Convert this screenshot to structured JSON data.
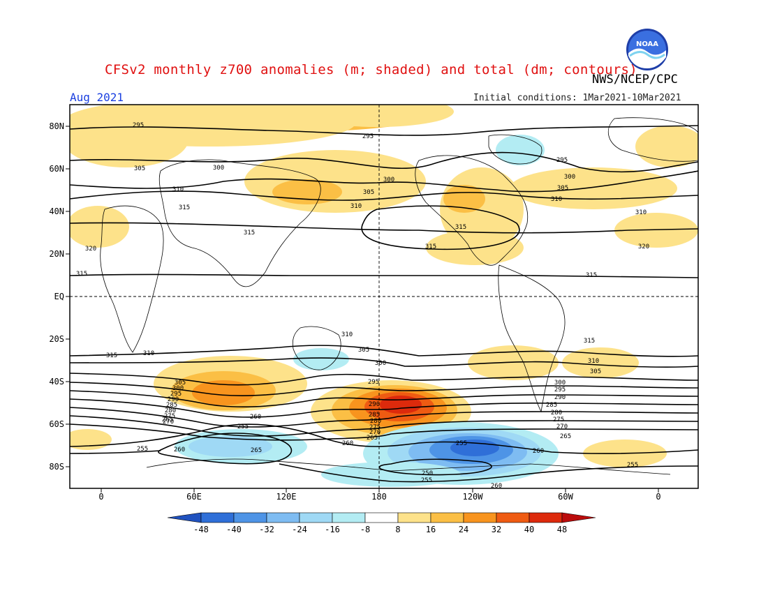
{
  "header": {
    "title": "CFSv2 monthly z700 anomalies (m; shaded) and total (dm; contours)",
    "agency": "NWS/NCEP/CPC",
    "month": "Aug 2021",
    "initial_conditions": "Initial conditions: 1Mar2021-10Mar2021",
    "logo_text": "NOAA"
  },
  "map": {
    "lat_labels": [
      "80N",
      "60N",
      "40N",
      "20N",
      "EQ",
      "20S",
      "40S",
      "60S",
      "80S"
    ],
    "lon_labels": [
      "0",
      "60E",
      "120E",
      "180",
      "120W",
      "60W",
      "0"
    ],
    "colors": {
      "pos8": "#fde28a",
      "pos16": "#fbbf45",
      "pos24": "#f8941e",
      "pos32": "#ef5b12",
      "pos40": "#dd2a0c",
      "pos48": "#bb0c0c",
      "neg8": "#b3ecf3",
      "neg16": "#9fd9f5",
      "neg24": "#7ebcf2",
      "neg32": "#4e94e6",
      "neg40": "#2f6fd8",
      "neg48": "#2052bf"
    },
    "contour_labels": [
      {
        "text": "295"
      },
      {
        "text": "295"
      },
      {
        "text": "295"
      },
      {
        "text": "305"
      },
      {
        "text": "300"
      },
      {
        "text": "300"
      },
      {
        "text": "300"
      },
      {
        "text": "310"
      },
      {
        "text": "305"
      },
      {
        "text": "305"
      },
      {
        "text": "310"
      },
      {
        "text": "310"
      },
      {
        "text": "315"
      },
      {
        "text": "310"
      },
      {
        "text": "315"
      },
      {
        "text": "315"
      },
      {
        "text": "315"
      },
      {
        "text": "320"
      },
      {
        "text": "320"
      },
      {
        "text": "315"
      },
      {
        "text": "315"
      },
      {
        "text": "310"
      },
      {
        "text": "315"
      },
      {
        "text": "310"
      },
      {
        "text": "305"
      },
      {
        "text": "315"
      },
      {
        "text": "310"
      },
      {
        "text": "305"
      },
      {
        "text": "300"
      },
      {
        "text": "295"
      },
      {
        "text": "305"
      },
      {
        "text": "300"
      },
      {
        "text": "295"
      },
      {
        "text": "290"
      },
      {
        "text": "285"
      },
      {
        "text": "280"
      },
      {
        "text": "275"
      },
      {
        "text": "270"
      },
      {
        "text": "265"
      },
      {
        "text": "290"
      },
      {
        "text": "285"
      },
      {
        "text": "280"
      },
      {
        "text": "275"
      },
      {
        "text": "270"
      },
      {
        "text": "265"
      },
      {
        "text": "300"
      },
      {
        "text": "295"
      },
      {
        "text": "290"
      },
      {
        "text": "285"
      },
      {
        "text": "280"
      },
      {
        "text": "275"
      },
      {
        "text": "270"
      },
      {
        "text": "265"
      },
      {
        "text": "260"
      },
      {
        "text": "260"
      },
      {
        "text": "255"
      },
      {
        "text": "255"
      },
      {
        "text": "260"
      },
      {
        "text": "265"
      },
      {
        "text": "260"
      },
      {
        "text": "255"
      },
      {
        "text": "250"
      },
      {
        "text": "255"
      },
      {
        "text": "255"
      },
      {
        "text": "260"
      }
    ]
  },
  "colorbar": {
    "tick_labels": [
      "-48",
      "-40",
      "-32",
      "-24",
      "-16",
      "-8",
      "8",
      "16",
      "24",
      "32",
      "40",
      "48"
    ],
    "colors": [
      "#2052bf",
      "#2f6fd8",
      "#4e94e6",
      "#7ebcf2",
      "#9fd9f5",
      "#b3ecf3",
      "#ffffff",
      "#fde28a",
      "#fbbf45",
      "#f8941e",
      "#ef5b12",
      "#dd2a0c",
      "#bb0c0c"
    ]
  }
}
